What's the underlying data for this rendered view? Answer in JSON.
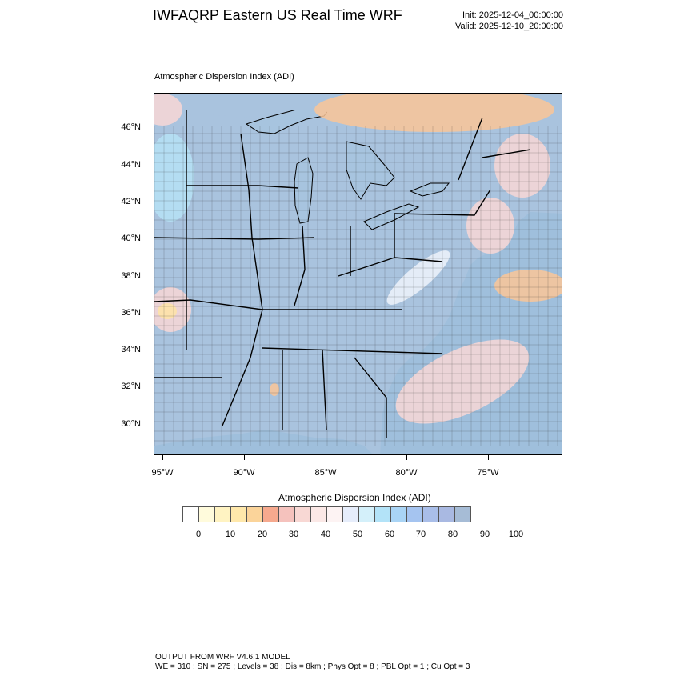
{
  "header": {
    "title": "IWFAQRP Eastern US Real Time WRF",
    "init": "Init: 2025-12-04_00:00:00",
    "valid": "Valid: 2025-12-10_20:00:00"
  },
  "plot": {
    "subtitle": "Atmospheric Dispersion Index   (ADI)",
    "lat_labels": [
      "46°N",
      "44°N",
      "42°N",
      "40°N",
      "38°N",
      "36°N",
      "34°N",
      "32°N",
      "30°N"
    ],
    "lon_labels": [
      "95°W",
      "90°W",
      "85°W",
      "80°W",
      "75°W"
    ],
    "colors": {
      "land": "#a9c3de",
      "water": "#a7c4df",
      "open_ocean": "#9fbfdc",
      "light": "#eef3fb",
      "cyan": "#b6e2f6",
      "pink": "#f8d7d6",
      "orange": "#fac598",
      "yellow": "#ffe3a6",
      "border": "#000000",
      "county": "#2c2c2c"
    }
  },
  "colorbar": {
    "title": "Atmospheric Dispersion Index  (ADI)",
    "labels": [
      "0",
      "10",
      "20",
      "30",
      "40",
      "50",
      "60",
      "70",
      "80",
      "90",
      "100"
    ],
    "colors": [
      "#ffffff",
      "#fffbdc",
      "#fff3c2",
      "#ffe8ab",
      "#fbd49a",
      "#f6a98e",
      "#f5c2bd",
      "#f8d8d4",
      "#fbe8e6",
      "#fdf3f3",
      "#e6edfb",
      "#d4f0fa",
      "#b3e3f8",
      "#a9d4f5",
      "#a5c4f0",
      "#a9bee9",
      "#a9b9e2",
      "#a6bcd6"
    ]
  },
  "footer": {
    "line1": "OUTPUT FROM WRF V4.6.1 MODEL",
    "line2": "WE = 310 ; SN = 275 ; Levels = 38 ; Dis = 8km ; Phys Opt = 8 ; PBL Opt = 1 ; Cu Opt = 3"
  }
}
